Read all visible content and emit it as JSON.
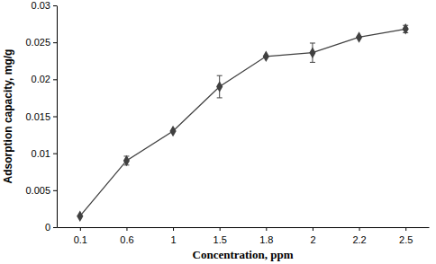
{
  "chart_data": {
    "type": "line",
    "x_label": "Concentration, ppm",
    "y_label": "Adsorption capacity, mg/g",
    "categories": [
      "0.1",
      "0.6",
      "1",
      "1.5",
      "1.8",
      "2",
      "2.2",
      "2.5"
    ],
    "values": [
      0.0015,
      0.009,
      0.013,
      0.019,
      0.0231,
      0.0236,
      0.0257,
      0.0268
    ],
    "errors": [
      0,
      0.0006,
      0,
      0.0015,
      0,
      0.0013,
      0,
      0.0005
    ],
    "color": "#404040",
    "marker": "diamond",
    "ylim": [
      0,
      0.03
    ],
    "yticks": [
      0,
      0.005,
      0.01,
      0.015,
      0.02,
      0.025,
      0.03
    ]
  }
}
